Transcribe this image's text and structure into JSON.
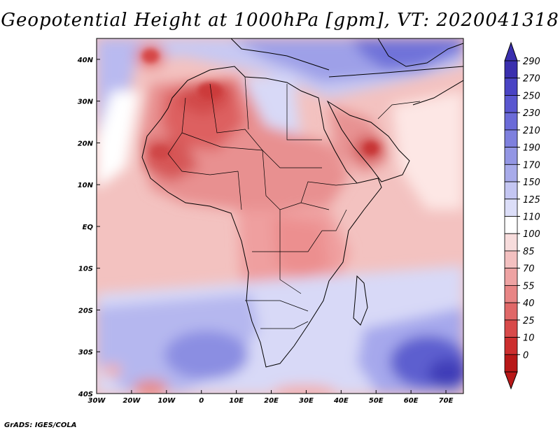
{
  "title": "Geopotential Height at 1000hPa [gpm], VT: 2020041318",
  "credit": "GrADS: IGES/COLA",
  "map": {
    "variable": "Geopotential Height",
    "level": "1000hPa",
    "units": "gpm",
    "valid_time": "2020041318",
    "lon_range": [
      -30,
      75
    ],
    "lat_range": [
      -40,
      45
    ]
  },
  "lon_ticks": [
    {
      "lon": -30,
      "label": "30W"
    },
    {
      "lon": -20,
      "label": "20W"
    },
    {
      "lon": -10,
      "label": "10W"
    },
    {
      "lon": 0,
      "label": "0"
    },
    {
      "lon": 10,
      "label": "10E"
    },
    {
      "lon": 20,
      "label": "20E"
    },
    {
      "lon": 30,
      "label": "30E"
    },
    {
      "lon": 40,
      "label": "40E"
    },
    {
      "lon": 50,
      "label": "50E"
    },
    {
      "lon": 60,
      "label": "60E"
    },
    {
      "lon": 70,
      "label": "70E"
    }
  ],
  "lat_ticks": [
    {
      "lat": 40,
      "label": "40N"
    },
    {
      "lat": 30,
      "label": "30N"
    },
    {
      "lat": 20,
      "label": "20N"
    },
    {
      "lat": 10,
      "label": "10N"
    },
    {
      "lat": 0,
      "label": "EQ"
    },
    {
      "lat": -10,
      "label": "10S"
    },
    {
      "lat": -20,
      "label": "20S"
    },
    {
      "lat": -30,
      "label": "30S"
    },
    {
      "lat": -40,
      "label": "40S"
    }
  ],
  "colorbar": {
    "levels": [
      "290",
      "270",
      "250",
      "230",
      "210",
      "190",
      "170",
      "150",
      "125",
      "110",
      "100",
      "85",
      "70",
      "55",
      "40",
      "25",
      "10",
      "0"
    ],
    "colors": [
      "#3a2fae",
      "#4a44c4",
      "#5a57d0",
      "#6b6bd8",
      "#7e80de",
      "#9396e4",
      "#a8abea",
      "#c4c6f2",
      "#dcdef8",
      "#ffffff",
      "#f7dcdc",
      "#f3c0c0",
      "#eea3a3",
      "#e88585",
      "#e06868",
      "#d84a4a",
      "#cc2e2e",
      "#b81818"
    ]
  }
}
